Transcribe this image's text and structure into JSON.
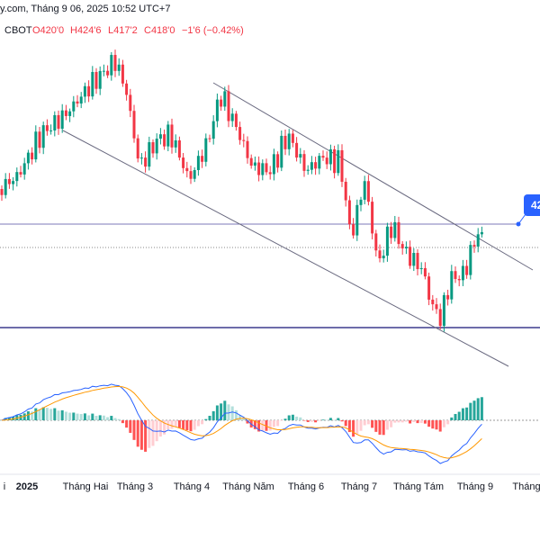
{
  "header": {
    "title": "y.com, Tháng 9 06, 2025 10:52 UTC+7",
    "exchange": "CBOT",
    "open": "O420'0",
    "high": "H424'6",
    "low": "L417'2",
    "close": "C418'0",
    "change": "−1'6 (−0.42%)"
  },
  "price_badge": "42",
  "x_axis": [
    "i",
    "2025",
    "Tháng Hai",
    "Tháng 3",
    "Tháng 4",
    "Tháng Năm",
    "Tháng 6",
    "Tháng 7",
    "Tháng Tám",
    "Tháng 9",
    "Tháng"
  ]
}
